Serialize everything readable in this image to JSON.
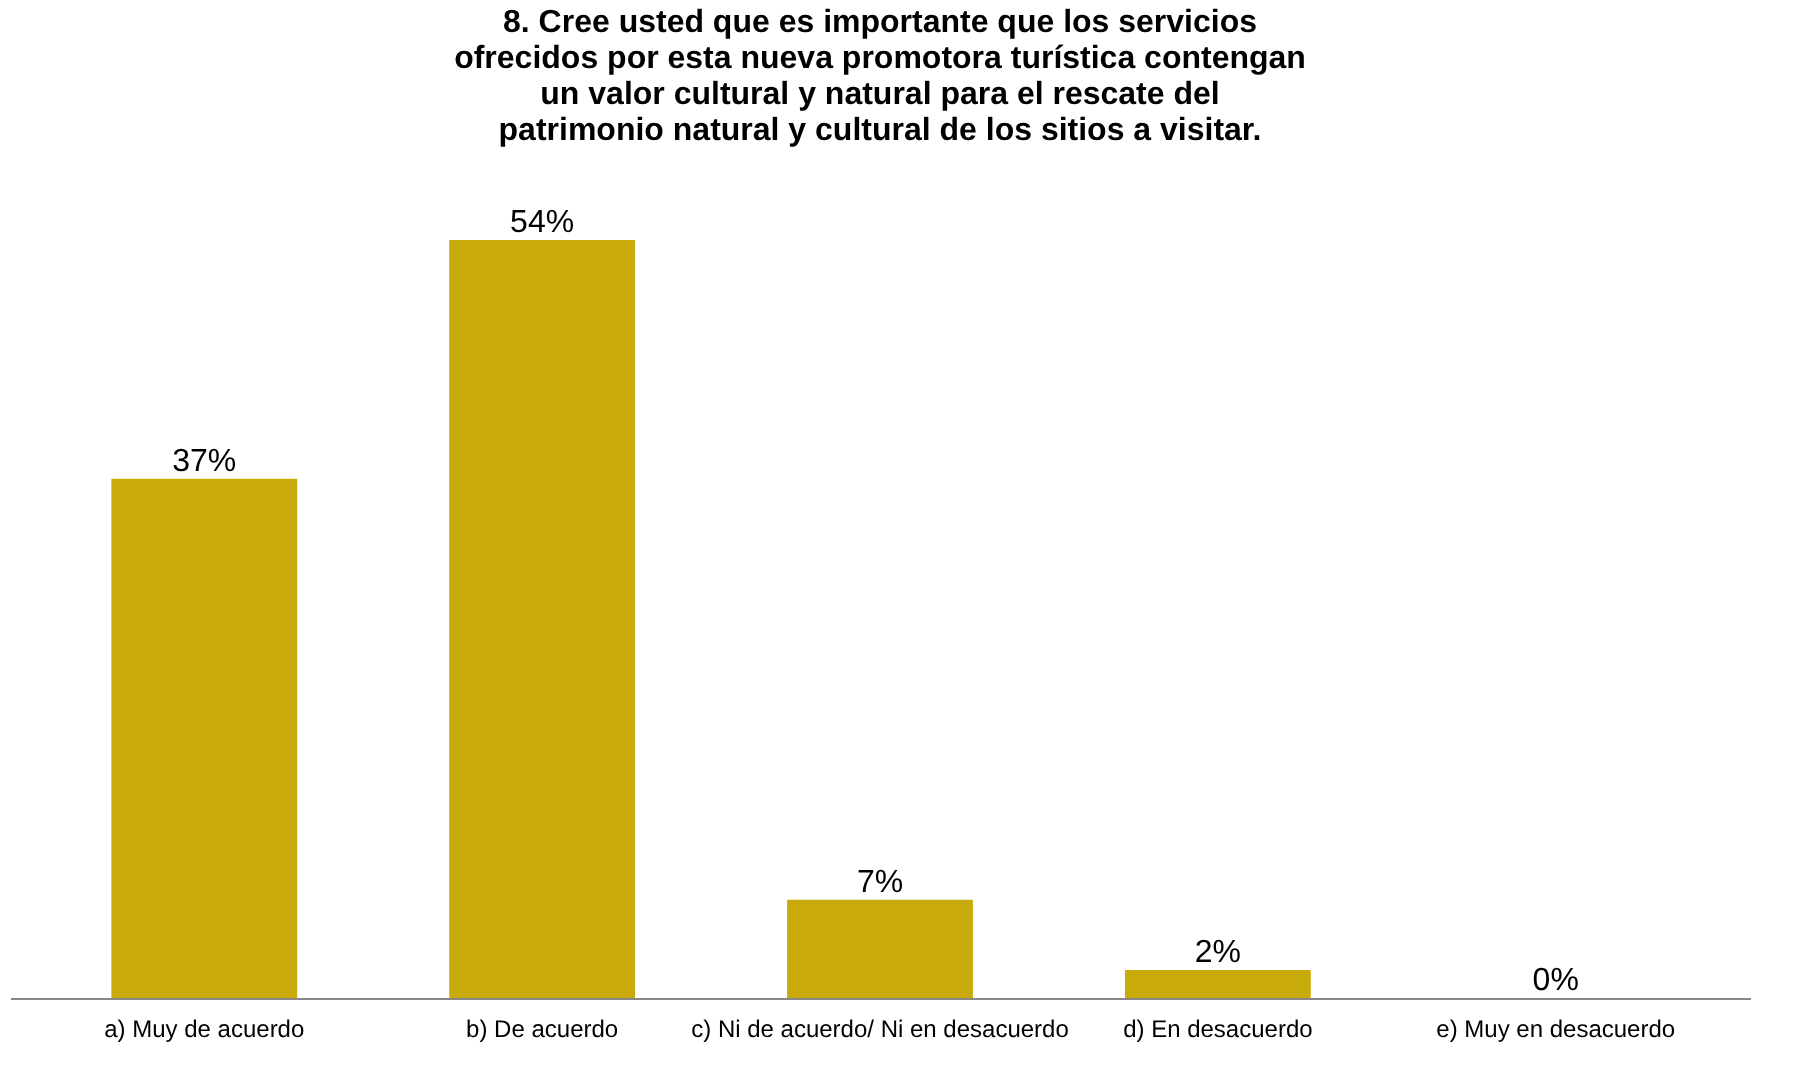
{
  "chart_data": {
    "type": "bar",
    "title": "8. Cree usted que es importante que los servicios\nofrecidos por esta nueva promotora turística contengan\nun  valor cultural y natural para el rescate del\npatrimonio natural y cultural de los sitios a visitar.",
    "categories": [
      "a) Muy de acuerdo",
      "b) De acuerdo",
      "c) Ni de acuerdo/ Ni en desacuerdo",
      "d) En desacuerdo",
      "e) Muy en desacuerdo"
    ],
    "values": [
      37,
      54,
      7,
      2,
      0
    ],
    "value_labels": [
      "37%",
      "54%",
      "7%",
      "2%",
      "0%"
    ],
    "color": "#c8aa0a",
    "grid": false,
    "tick_labels": "x"
  }
}
